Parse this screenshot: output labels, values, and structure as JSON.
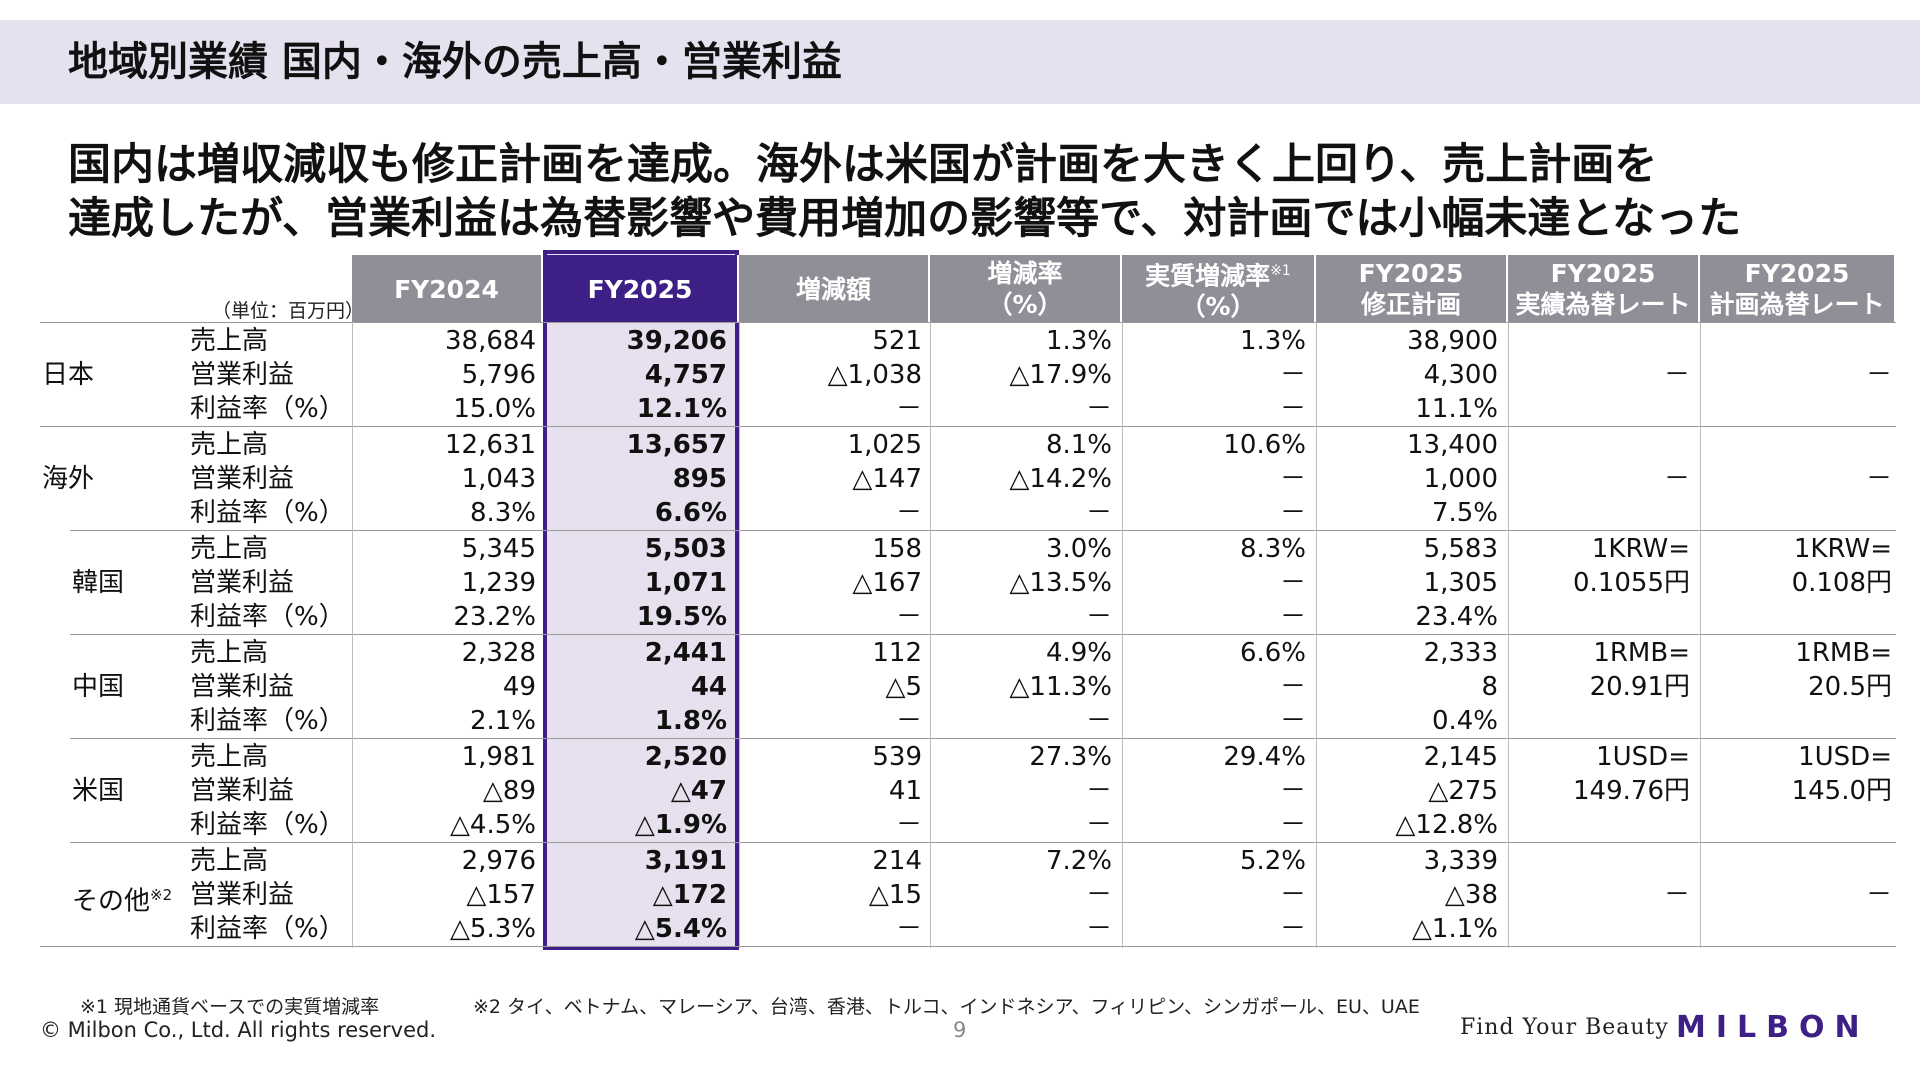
{
  "page": {
    "title": "地域別業績 国内・海外の売上高・営業利益",
    "headline_line1": "国内は増収減収も修正計画を達成。海外は米国が計画を大きく上回り、売上計画を",
    "headline_line2": "達成したが、営業利益は為替影響や費用増加の影響等で、対計画では小幅未達となった"
  },
  "table": {
    "unit": "（単位：百万円）",
    "headers": [
      {
        "line1": "FY2024",
        "line2": ""
      },
      {
        "line1": "FY2025",
        "line2": ""
      },
      {
        "line1": "増減額",
        "line2": ""
      },
      {
        "line1": "増減率",
        "line2": "（%）"
      },
      {
        "line1": "実質増減率",
        "line2": "（%）",
        "note": "※1"
      },
      {
        "line1": "FY2025",
        "line2": "修正計画"
      },
      {
        "line1": "FY2025",
        "line2": "実績為替レート"
      },
      {
        "line1": "FY2025",
        "line2": "計画為替レート"
      }
    ],
    "row_labels": [
      "売上高",
      "営業利益",
      "利益率（%）"
    ],
    "groups": [
      {
        "region": "日本",
        "note": "",
        "rows": [
          [
            "38,684",
            "39,206",
            "521",
            "1.3%",
            "1.3%",
            "38,900"
          ],
          [
            "5,796",
            "4,757",
            "△1,038",
            "△17.9%",
            "－",
            "4,300"
          ],
          [
            "15.0%",
            "12.1%",
            "－",
            "－",
            "－",
            "11.1%"
          ]
        ],
        "fx_actual_line1": "－",
        "fx_actual_line2": "",
        "fx_plan_line1": "－",
        "fx_plan_line2": ""
      },
      {
        "region": "海外",
        "note": "",
        "rows": [
          [
            "12,631",
            "13,657",
            "1,025",
            "8.1%",
            "10.6%",
            "13,400"
          ],
          [
            "1,043",
            "895",
            "△147",
            "△14.2%",
            "－",
            "1,000"
          ],
          [
            "8.3%",
            "6.6%",
            "－",
            "－",
            "－",
            "7.5%"
          ]
        ],
        "fx_actual_line1": "－",
        "fx_actual_line2": "",
        "fx_plan_line1": "－",
        "fx_plan_line2": ""
      },
      {
        "region": "韓国",
        "note": "",
        "rows": [
          [
            "5,345",
            "5,503",
            "158",
            "3.0%",
            "8.3%",
            "5,583"
          ],
          [
            "1,239",
            "1,071",
            "△167",
            "△13.5%",
            "－",
            "1,305"
          ],
          [
            "23.2%",
            "19.5%",
            "－",
            "－",
            "－",
            "23.4%"
          ]
        ],
        "fx_actual_line1": "1KRW=",
        "fx_actual_line2": "0.1055円",
        "fx_plan_line1": "1KRW=",
        "fx_plan_line2": "0.108円"
      },
      {
        "region": "中国",
        "note": "",
        "rows": [
          [
            "2,328",
            "2,441",
            "112",
            "4.9%",
            "6.6%",
            "2,333"
          ],
          [
            "49",
            "44",
            "△5",
            "△11.3%",
            "－",
            "8"
          ],
          [
            "2.1%",
            "1.8%",
            "－",
            "－",
            "－",
            "0.4%"
          ]
        ],
        "fx_actual_line1": "1RMB=",
        "fx_actual_line2": "20.91円",
        "fx_plan_line1": "1RMB=",
        "fx_plan_line2": "20.5円"
      },
      {
        "region": "米国",
        "note": "",
        "rows": [
          [
            "1,981",
            "2,520",
            "539",
            "27.3%",
            "29.4%",
            "2,145"
          ],
          [
            "△89",
            "△47",
            "41",
            "－",
            "－",
            "△275"
          ],
          [
            "△4.5%",
            "△1.9%",
            "－",
            "－",
            "－",
            "△12.8%"
          ]
        ],
        "fx_actual_line1": "1USD=",
        "fx_actual_line2": "149.76円",
        "fx_plan_line1": "1USD=",
        "fx_plan_line2": "145.0円"
      },
      {
        "region": "その他",
        "note": "※2",
        "rows": [
          [
            "2,976",
            "3,191",
            "214",
            "7.2%",
            "5.2%",
            "3,339"
          ],
          [
            "△157",
            "△172",
            "△15",
            "－",
            "－",
            "△38"
          ],
          [
            "△5.3%",
            "△5.4%",
            "－",
            "－",
            "－",
            "△1.1%"
          ]
        ],
        "fx_actual_line1": "－",
        "fx_actual_line2": "",
        "fx_plan_line1": "－",
        "fx_plan_line2": ""
      }
    ]
  },
  "footer": {
    "note1": "※1 現地通貨ベースでの実質増減率",
    "note2": "※2 タイ、ベトナム、マレーシア、台湾、香港、トルコ、インドネシア、フィリピン、シンガポール、EU、UAE",
    "copyright": "© Milbon Co., Ltd. All rights reserved.",
    "page_number": "9",
    "slogan": "Find Your Beauty",
    "logo_text": "MILBON"
  },
  "colors": {
    "accent": "#3e1f86",
    "header_gray": "#8f8f98",
    "highlight_bg": "#e7e1ef",
    "title_bar": "#e6e1ee"
  }
}
